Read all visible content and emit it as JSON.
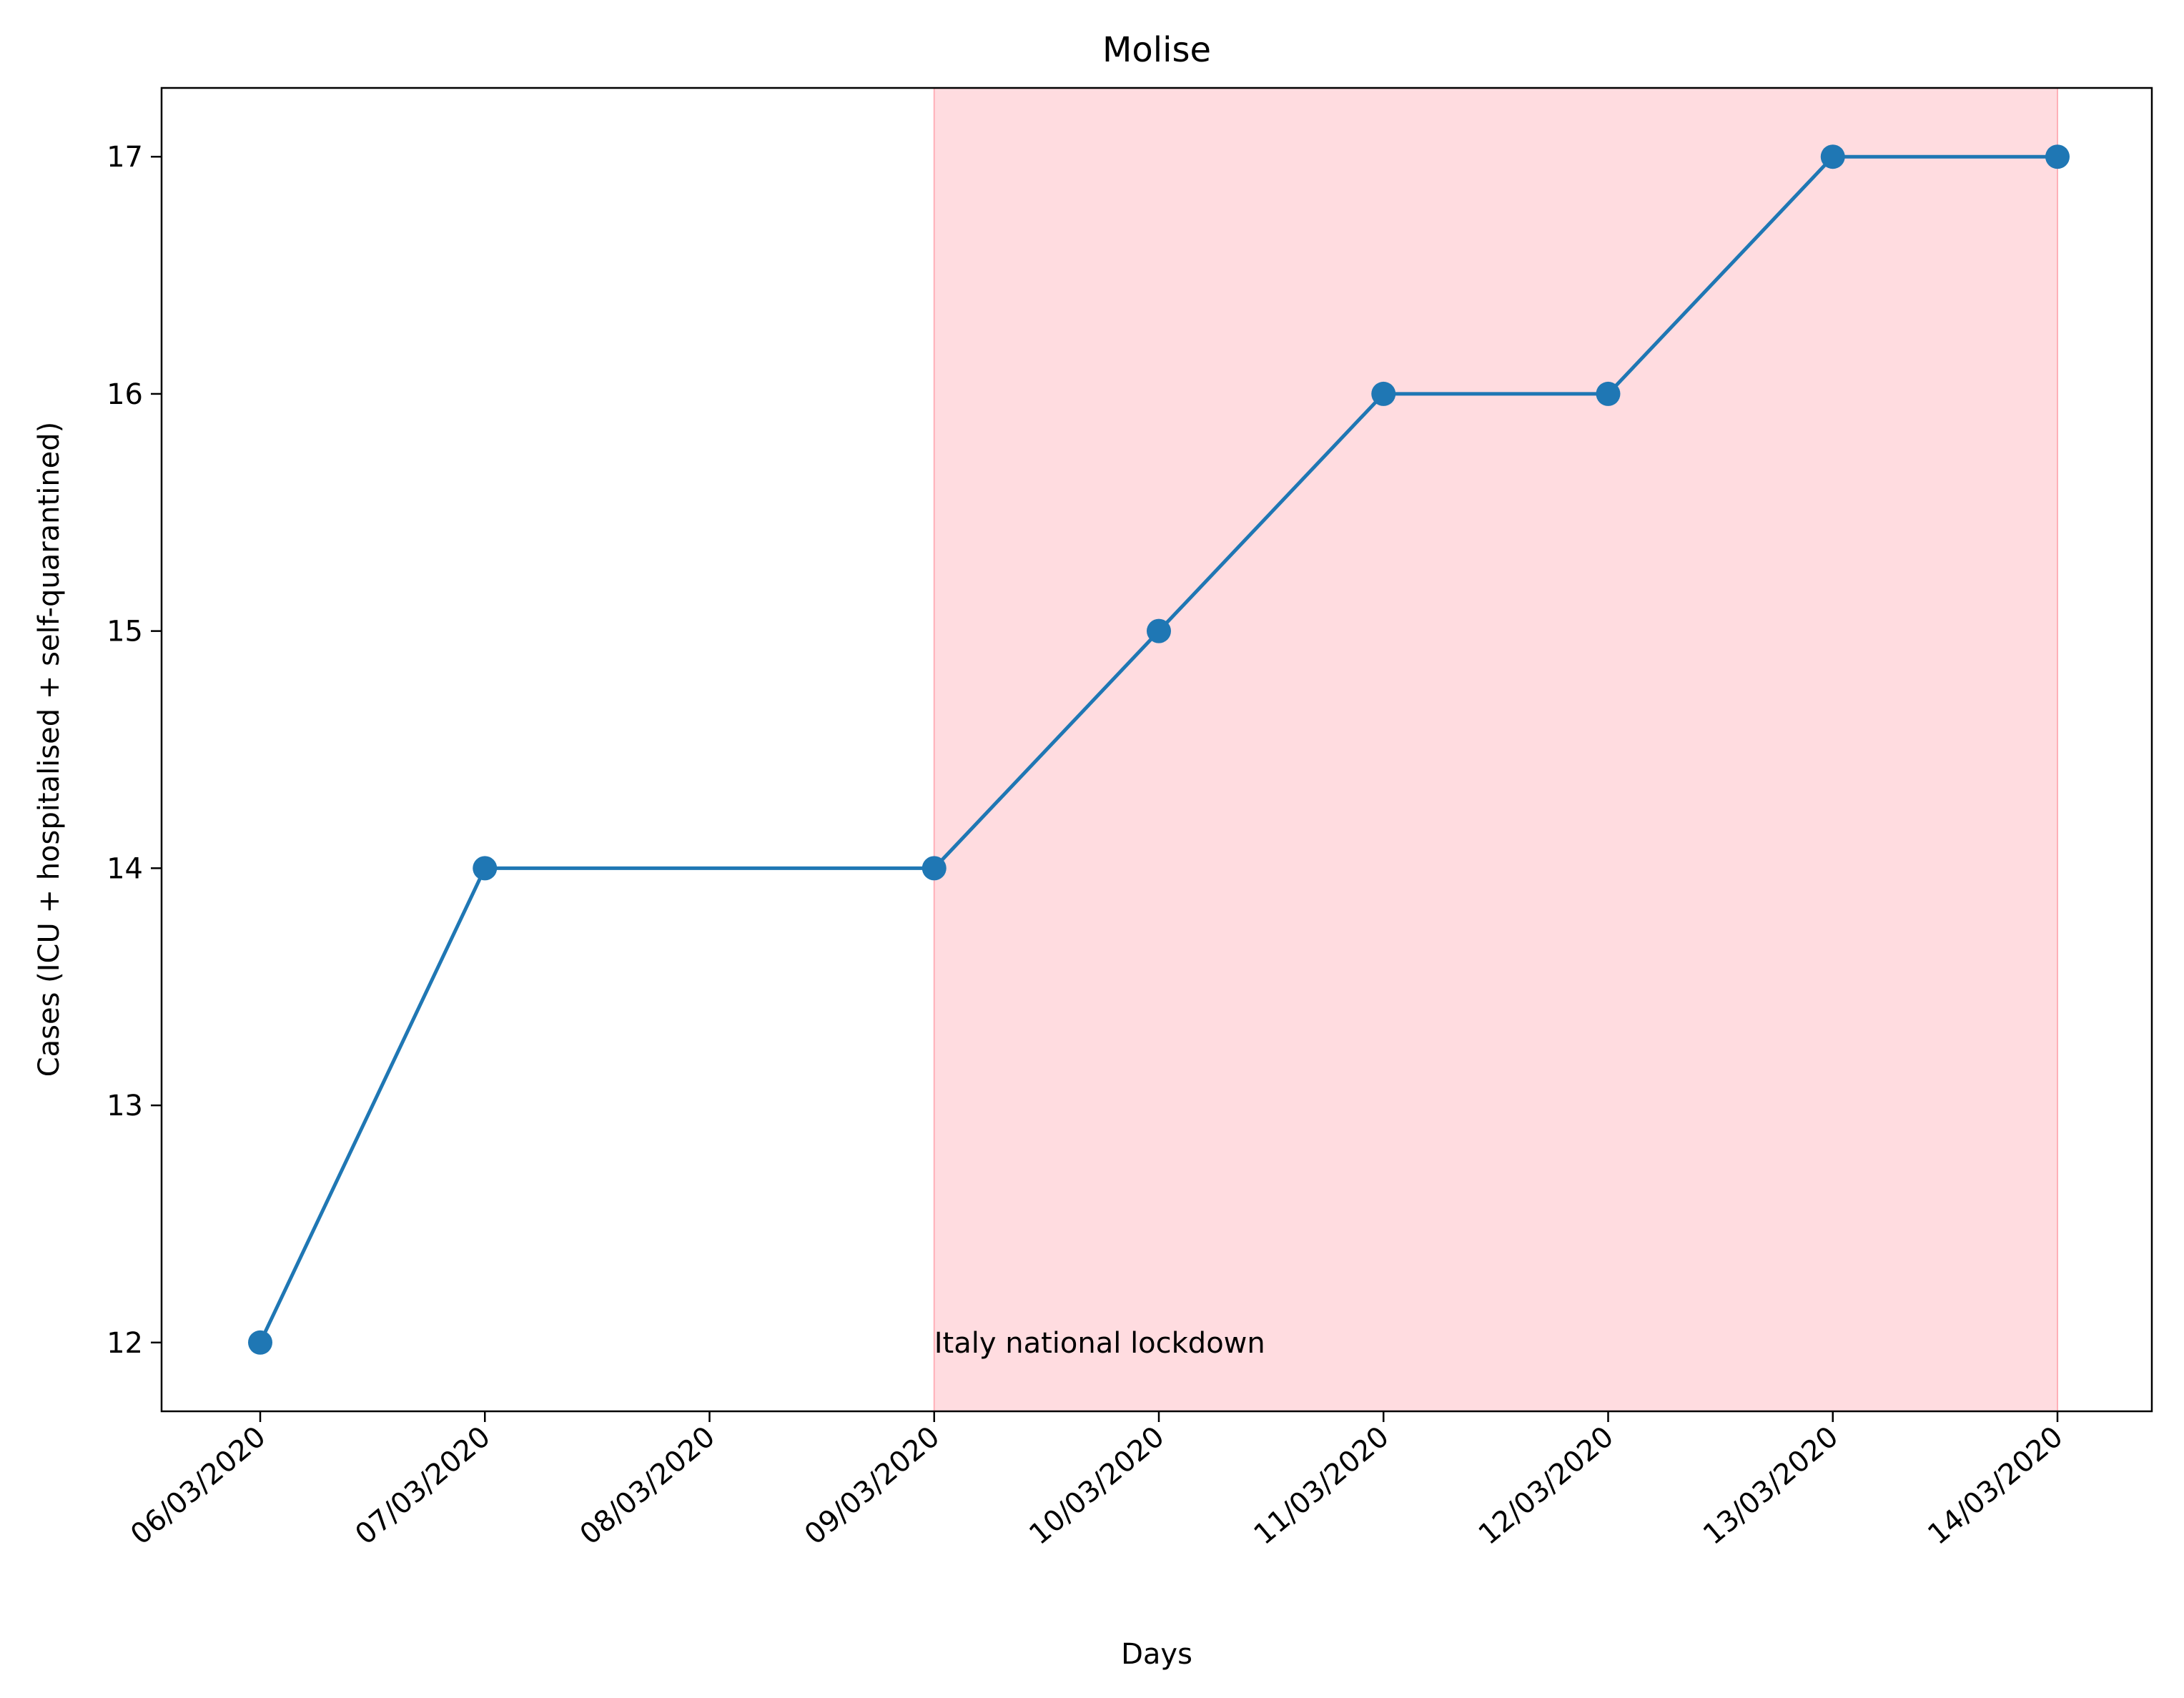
{
  "chart_data": {
    "type": "line",
    "title": "Molise",
    "xlabel": "Days",
    "ylabel": "Cases (ICU + hospitalised + self-quarantined)",
    "categories": [
      "06/03/2020",
      "07/03/2020",
      "08/03/2020",
      "09/03/2020",
      "10/03/2020",
      "11/03/2020",
      "12/03/2020",
      "13/03/2020",
      "14/03/2020"
    ],
    "series": [
      {
        "x": [
          "06/03/2020",
          "07/03/2020",
          "09/03/2020",
          "10/03/2020",
          "11/03/2020",
          "12/03/2020",
          "13/03/2020",
          "14/03/2020"
        ],
        "values": [
          12,
          14,
          14,
          15,
          16,
          16,
          17,
          17
        ],
        "color": "#1f77b4"
      }
    ],
    "ylim": [
      11.71,
      17.29
    ],
    "yticks": [
      12,
      13,
      14,
      15,
      16,
      17
    ],
    "shaded_region": {
      "from": "09/03/2020",
      "to": "14/03/2020",
      "color": "#ffc0c6",
      "label": "Italy national lockdown"
    },
    "grid": false,
    "legend": "none"
  }
}
